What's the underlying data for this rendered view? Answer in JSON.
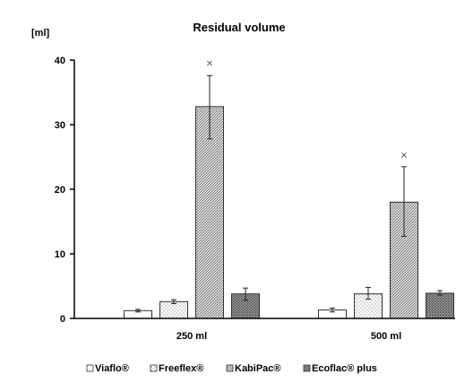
{
  "chart_data": {
    "type": "bar",
    "title": "Residual volume",
    "ylabel": "[ml]",
    "xlabel": "",
    "categories": [
      "250 ml",
      "500 ml"
    ],
    "ylim": [
      0,
      40
    ],
    "yticks": [
      0,
      10,
      20,
      30,
      40
    ],
    "series": [
      {
        "name": "Viaflo®",
        "values": [
          1.2,
          1.3
        ],
        "err_low": [
          1.0,
          1.0
        ],
        "err_high": [
          1.4,
          1.6
        ],
        "outliers": [
          null,
          null
        ],
        "pattern": "plain",
        "color": "#ffffff"
      },
      {
        "name": "Freeflex®",
        "values": [
          2.6,
          3.8
        ],
        "err_low": [
          2.3,
          3.0
        ],
        "err_high": [
          2.9,
          4.8
        ],
        "outliers": [
          null,
          null
        ],
        "pattern": "dots",
        "color": "#f4f4f4"
      },
      {
        "name": "KabiPac®",
        "values": [
          32.8,
          18.0
        ],
        "err_low": [
          27.8,
          12.7
        ],
        "err_high": [
          37.6,
          23.5
        ],
        "outliers": [
          39.5,
          25.3
        ],
        "pattern": "diag",
        "color": "#c8c8c8"
      },
      {
        "name": "Ecoflac® plus",
        "values": [
          3.8,
          3.9
        ],
        "err_low": [
          2.8,
          3.6
        ],
        "err_high": [
          4.7,
          4.3
        ],
        "outliers": [
          null,
          null
        ],
        "pattern": "dense",
        "color": "#9a9a9a"
      }
    ],
    "outlier_marker": "×",
    "legend_position": "bottom",
    "grid": false
  }
}
